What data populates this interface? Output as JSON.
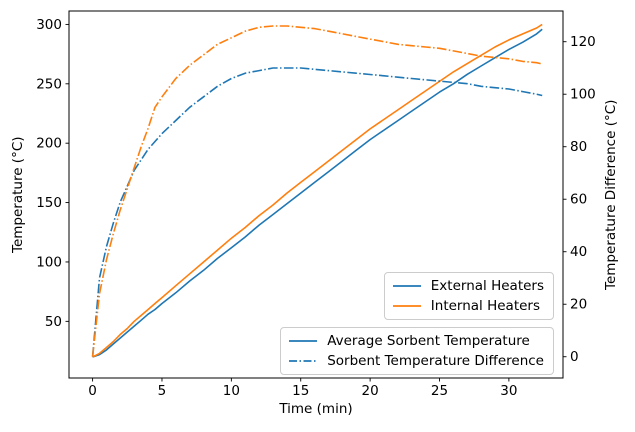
{
  "figure": {
    "background": "#ffffff"
  },
  "colors": {
    "blue": "#1f77b4",
    "orange": "#ff7f0e",
    "spine": "#000000",
    "legend_border": "#cccccc"
  },
  "chart_data": {
    "type": "line",
    "title": "",
    "xlabel": "Time (min)",
    "ylabel_left": "Temperature (°C)",
    "ylabel_right": "Temperature Difference (°C)",
    "grid": false,
    "legend_positions": [
      "lower right (heaters)",
      "lower right (line styles)"
    ],
    "xlim": [
      -1.7,
      33.9
    ],
    "ylim_left": [
      2.3,
      311.3
    ],
    "ylim_right": [
      -8.1,
      131.7
    ],
    "x_ticks": [
      0,
      5,
      10,
      15,
      20,
      25,
      30
    ],
    "y_ticks_left": [
      50,
      100,
      150,
      200,
      250,
      300
    ],
    "y_ticks_right": [
      0,
      20,
      40,
      60,
      80,
      100,
      120
    ],
    "x": [
      0,
      0.5,
      1,
      1.5,
      2,
      2.5,
      3,
      3.5,
      4,
      4.5,
      5,
      6,
      7,
      8,
      9,
      10,
      11,
      12,
      13,
      14,
      15,
      16,
      17,
      18,
      19,
      20,
      21,
      22,
      23,
      24,
      25,
      26,
      27,
      28,
      29,
      30,
      31,
      32,
      32.4
    ],
    "series": [
      {
        "name": "External Heaters - Average Sorbent Temperature",
        "axis": "left",
        "color": "#1f77b4",
        "linestyle": "solid",
        "values": [
          20,
          22,
          26,
          31,
          36,
          41,
          46,
          51,
          56,
          60,
          65,
          74,
          84,
          93,
          103,
          112,
          121,
          131,
          140,
          149,
          158,
          167,
          176,
          185,
          194,
          203,
          211,
          219,
          227,
          235,
          243,
          250,
          258,
          265,
          272,
          279,
          285,
          292,
          296
        ]
      },
      {
        "name": "Internal Heaters - Average Sorbent Temperature",
        "axis": "left",
        "color": "#ff7f0e",
        "linestyle": "solid",
        "values": [
          20,
          23,
          28,
          33,
          39,
          44,
          50,
          55,
          60,
          65,
          70,
          80,
          90,
          100,
          110,
          120,
          129,
          139,
          148,
          158,
          167,
          176,
          185,
          194,
          203,
          212,
          220,
          228,
          236,
          244,
          252,
          260,
          267,
          274,
          281,
          287,
          292,
          297,
          300
        ]
      },
      {
        "name": "External Heaters - Sorbent Temperature Difference",
        "axis": "right",
        "color": "#1f77b4",
        "linestyle": "dashdot",
        "values": [
          0,
          30,
          42,
          51,
          59,
          65,
          71,
          75,
          79,
          82,
          85,
          90,
          95,
          99,
          103,
          106,
          108,
          109,
          110,
          110,
          110,
          109.5,
          109,
          108.5,
          108,
          107.5,
          107,
          106.5,
          106,
          105.5,
          105,
          104.5,
          104,
          103,
          102.5,
          102,
          101,
          100,
          99.5
        ]
      },
      {
        "name": "Internal Heaters - Sorbent Temperature Difference",
        "axis": "right",
        "color": "#ff7f0e",
        "linestyle": "dashdot",
        "values": [
          0,
          24,
          37,
          47,
          56,
          64,
          72,
          80,
          87,
          95,
          99,
          106,
          111,
          115,
          119,
          121.5,
          124,
          125.5,
          126,
          126,
          125.5,
          125,
          124,
          123,
          122,
          121,
          120,
          119,
          118.5,
          118,
          117.5,
          116.5,
          115.5,
          114.5,
          114,
          113.5,
          112.5,
          112,
          111.5
        ]
      }
    ]
  },
  "legends": [
    {
      "name": "heaters",
      "entries": [
        {
          "label": "External Heaters",
          "color": "#1f77b4",
          "linestyle": "solid"
        },
        {
          "label": "Internal Heaters",
          "color": "#ff7f0e",
          "linestyle": "solid"
        }
      ]
    },
    {
      "name": "line-styles",
      "entries": [
        {
          "label": "Average Sorbent Temperature",
          "color": "#1f77b4",
          "linestyle": "solid"
        },
        {
          "label": "Sorbent Temperature Difference",
          "color": "#1f77b4",
          "linestyle": "dashdot"
        }
      ]
    }
  ]
}
